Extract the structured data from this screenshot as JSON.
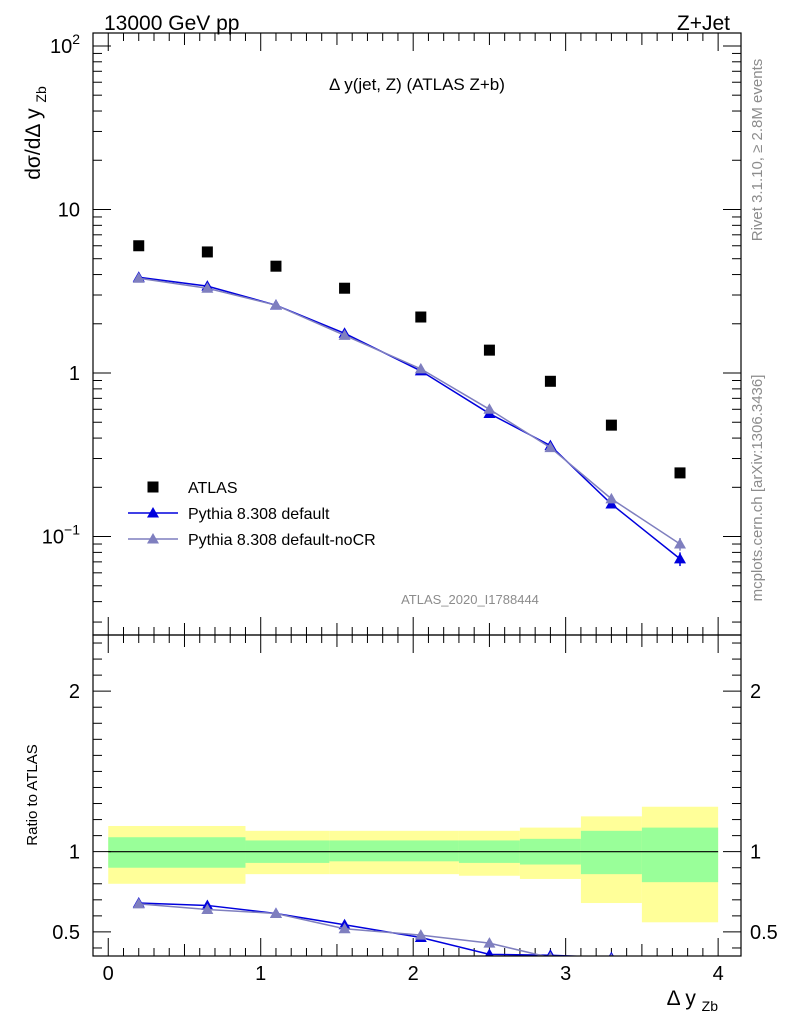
{
  "header": {
    "left_label": "13000 GeV pp",
    "right_label": "Z+Jet"
  },
  "side_labels": {
    "rivet": "Rivet 3.1.10, ≥ 2.8M events",
    "mcplots": "mcplots.cern.ch [arXiv:1306.3436]"
  },
  "analysis_id": "ATLAS_2020_I1788444",
  "chart_data": [
    {
      "type": "scatter",
      "panel": "main",
      "title": "Δ y(jet, Z) (ATLAS Z+b)",
      "ylabel": "dσ/dΔ y_Zb",
      "xlabel": "",
      "yscale": "log",
      "xlim": [
        -0.1,
        4.15
      ],
      "ylim": [
        0.025,
        120
      ],
      "yticks": [
        {
          "value": 0.1,
          "label": "10",
          "exp": "−1"
        },
        {
          "value": 1,
          "label": "1",
          "exp": ""
        },
        {
          "value": 10,
          "label": "10",
          "exp": ""
        },
        {
          "value": 100,
          "label": "10",
          "exp": "2"
        }
      ],
      "legend_position": "bottom-left",
      "series": [
        {
          "name": "ATLAS",
          "kind": "data",
          "marker": "square",
          "color": "#000000",
          "x": [
            0.2,
            0.65,
            1.1,
            1.55,
            2.05,
            2.5,
            2.9,
            3.3,
            3.75
          ],
          "y": [
            6.0,
            5.5,
            4.5,
            3.3,
            2.2,
            1.38,
            0.89,
            0.48,
            0.245
          ],
          "xerr": [
            0.2,
            0.25,
            0.2,
            0.25,
            0.25,
            0.2,
            0.2,
            0.2,
            0.25
          ]
        },
        {
          "name": "Pythia 8.308 default",
          "kind": "mc",
          "marker": "triangle",
          "color": "#0000dd",
          "x": [
            0.2,
            0.65,
            1.1,
            1.55,
            2.05,
            2.5,
            2.9,
            3.3,
            3.75
          ],
          "y": [
            3.85,
            3.4,
            2.6,
            1.75,
            1.03,
            0.565,
            0.36,
            0.158,
            0.073
          ],
          "yerr": [
            0.05,
            0.05,
            0.04,
            0.03,
            0.02,
            0.012,
            0.01,
            0.008,
            0.007
          ]
        },
        {
          "name": "Pythia 8.308 default-noCR",
          "kind": "mc",
          "marker": "triangle",
          "color": "#7f7fbf",
          "x": [
            0.2,
            0.65,
            1.1,
            1.55,
            2.05,
            2.5,
            2.9,
            3.3,
            3.75
          ],
          "y": [
            3.8,
            3.3,
            2.6,
            1.7,
            1.06,
            0.6,
            0.35,
            0.17,
            0.09
          ],
          "yerr": [
            0.05,
            0.05,
            0.04,
            0.03,
            0.02,
            0.012,
            0.01,
            0.01,
            0.008
          ]
        }
      ]
    },
    {
      "type": "scatter",
      "panel": "ratio",
      "ylabel": "Ratio to ATLAS",
      "xlabel": "Δ y_Zb",
      "xlim": [
        -0.1,
        4.15
      ],
      "ylim": [
        0.35,
        2.35
      ],
      "xticks": [
        0,
        1,
        2,
        3,
        4
      ],
      "yticks": [
        0.5,
        1,
        2
      ],
      "bands": {
        "edges": [
          0,
          0.9,
          1.45,
          2.3,
          2.7,
          3.1,
          3.5,
          4.0
        ],
        "inner_lo": [
          0.9,
          0.93,
          0.94,
          0.93,
          0.92,
          0.86,
          0.81,
          0.74
        ],
        "inner_hi": [
          1.09,
          1.07,
          1.07,
          1.07,
          1.08,
          1.13,
          1.15,
          1.19
        ],
        "outer_lo": [
          0.8,
          0.86,
          0.86,
          0.85,
          0.83,
          0.68,
          0.56,
          0.3
        ],
        "outer_hi": [
          1.16,
          1.13,
          1.13,
          1.13,
          1.15,
          1.22,
          1.28,
          1.35
        ]
      },
      "series": [
        {
          "name": "Pythia 8.308 default",
          "color": "#0000dd",
          "x": [
            0.2,
            0.65,
            1.1,
            1.55,
            2.05,
            2.5,
            2.9,
            3.3
          ],
          "y": [
            0.68,
            0.665,
            0.615,
            0.545,
            0.465,
            0.36,
            0.355,
            0.34
          ],
          "yerr": [
            0.01,
            0.01,
            0.012,
            0.015,
            0.015,
            0.02,
            0.03,
            0.02
          ]
        },
        {
          "name": "Pythia 8.308 default-noCR",
          "color": "#7f7fbf",
          "x": [
            0.2,
            0.65,
            1.1,
            1.55,
            2.05,
            2.5,
            2.9,
            3.3
          ],
          "y": [
            0.675,
            0.64,
            0.615,
            0.52,
            0.48,
            0.43,
            0.34,
            0.33
          ],
          "yerr": [
            0.01,
            0.01,
            0.012,
            0.015,
            0.015,
            0.02,
            0.03,
            0.02
          ]
        }
      ]
    }
  ]
}
